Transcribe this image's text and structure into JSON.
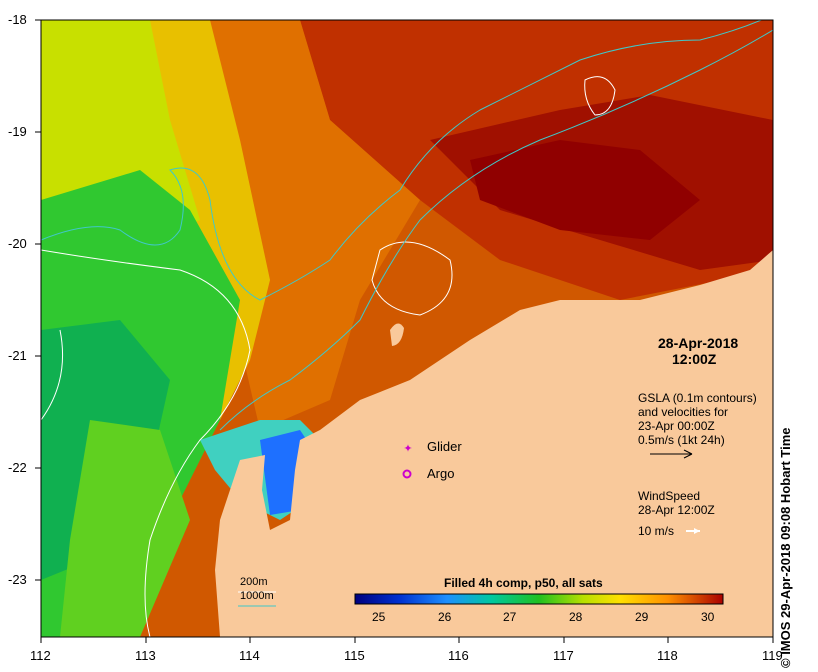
{
  "map": {
    "title_date": "28-Apr-2018",
    "title_time": "12:00Z",
    "x_ticks": [
      "112",
      "113",
      "114",
      "115",
      "116",
      "117",
      "118",
      "119"
    ],
    "y_ticks": [
      "-18",
      "-19",
      "-20",
      "-21",
      "-22",
      "-23"
    ],
    "credit": "© IMOS 29-Apr-2018 09:08 Hobart Time"
  },
  "legend": {
    "gsla_line1": "GSLA (0.1m contours)",
    "gsla_line2": "and velocities for",
    "gsla_line3": "23-Apr 00:00Z",
    "gsla_line4": "0.5m/s (1kt 24h)",
    "wind_line1": "WindSpeed",
    "wind_line2": "28-Apr 12:00Z",
    "wind_line3": "10 m/s",
    "glider": "Glider",
    "argo": "Argo",
    "bathy_200": "200m",
    "bathy_1000": "1000m"
  },
  "colorbar": {
    "title": "Filled 4h comp, p50, all sats",
    "ticks": [
      "25",
      "26",
      "27",
      "28",
      "29",
      "30"
    ]
  },
  "colors": {
    "land": "#F9C99B",
    "contour_200": "#ffffff",
    "contour_1000": "#40c8c8",
    "glider": "#cc00cc",
    "argo": "#cc00cc"
  }
}
